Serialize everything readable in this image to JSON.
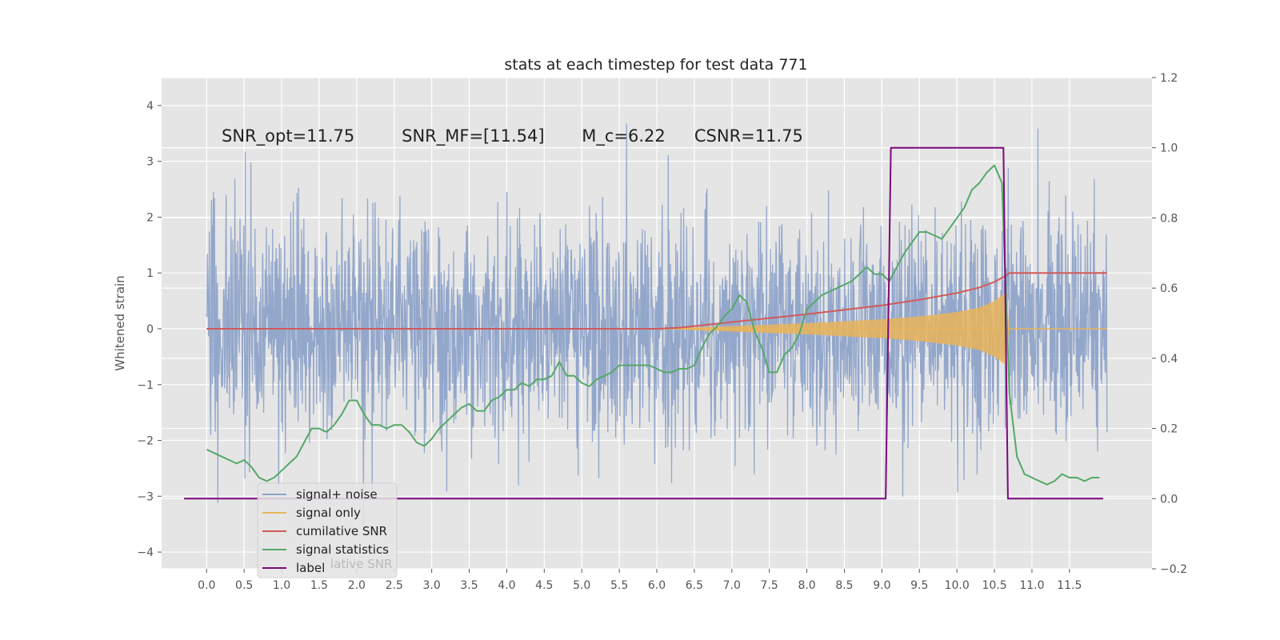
{
  "chart_data": {
    "type": "line",
    "title": "stats at each timestep for test data 771",
    "ylabel": "Whitened strain",
    "xlim": [
      -0.6,
      12.6
    ],
    "ylim": [
      -4.3,
      4.5
    ],
    "y2lim": [
      -0.2,
      1.2
    ],
    "grid": true,
    "legend_position": "lower-left",
    "x_ticks": [
      "0.0",
      "0.5",
      "1.0",
      "1.5",
      "2.0",
      "2.5",
      "3.0",
      "3.5",
      "4.0",
      "4.5",
      "5.0",
      "5.5",
      "6.0",
      "6.5",
      "7.0",
      "7.5",
      "8.0",
      "8.5",
      "9.0",
      "9.5",
      "10.0",
      "10.5",
      "11.0",
      "11.5"
    ],
    "y_ticks": [
      "4",
      "3",
      "2",
      "1",
      "0",
      "−1",
      "−2",
      "−3",
      "−4"
    ],
    "y2_ticks": [
      "1.2",
      "1.0",
      "0.8",
      "0.6",
      "0.4",
      "0.2",
      "0.0",
      "−0.2"
    ],
    "annotations": [
      {
        "text": "SNR_opt=11.75",
        "x": 0.2,
        "y": 3.35
      },
      {
        "text": "SNR_MF=[11.54]",
        "x": 2.6,
        "y": 3.35
      },
      {
        "text": "M_c=6.22",
        "x": 5.0,
        "y": 3.35
      },
      {
        "text": "CSNR=11.75",
        "x": 6.5,
        "y": 3.35
      }
    ],
    "series": [
      {
        "name": "signal+ noise",
        "color": "#8ea3c9",
        "axis": "left",
        "noise_std": 1.0,
        "x_range": [
          0.0,
          12.0
        ]
      },
      {
        "name": "signal only",
        "color": "#e9b45a",
        "axis": "left",
        "envelope_x": [
          6.0,
          7.0,
          8.0,
          9.0,
          9.5,
          10.0,
          10.3,
          10.5,
          10.65,
          10.7,
          12.0
        ],
        "envelope_y": [
          0.0,
          0.05,
          0.1,
          0.17,
          0.22,
          0.3,
          0.38,
          0.5,
          0.65,
          0.0,
          0.0
        ]
      },
      {
        "name": "cumilative SNR",
        "color": "#d15a5a",
        "axis": "left",
        "x": [
          0.0,
          6.0,
          6.3,
          7.0,
          8.0,
          9.0,
          9.5,
          10.0,
          10.3,
          10.5,
          10.65,
          10.7,
          12.0
        ],
        "values": [
          0.0,
          0.0,
          0.02,
          0.12,
          0.26,
          0.42,
          0.52,
          0.64,
          0.74,
          0.84,
          0.95,
          1.0,
          1.0
        ]
      },
      {
        "name": "signal statistics",
        "color": "#55a868",
        "axis": "right",
        "x": [
          0.0,
          0.1,
          0.2,
          0.3,
          0.4,
          0.5,
          0.6,
          0.7,
          0.8,
          0.9,
          1.0,
          1.1,
          1.2,
          1.3,
          1.4,
          1.5,
          1.6,
          1.7,
          1.8,
          1.9,
          2.0,
          2.1,
          2.2,
          2.3,
          2.4,
          2.5,
          2.6,
          2.7,
          2.8,
          2.9,
          3.0,
          3.1,
          3.2,
          3.3,
          3.4,
          3.5,
          3.6,
          3.7,
          3.8,
          3.9,
          4.0,
          4.1,
          4.2,
          4.3,
          4.4,
          4.5,
          4.6,
          4.7,
          4.8,
          4.9,
          5.0,
          5.1,
          5.2,
          5.3,
          5.4,
          5.5,
          5.6,
          5.7,
          5.8,
          5.9,
          6.0,
          6.1,
          6.2,
          6.3,
          6.4,
          6.5,
          6.6,
          6.7,
          6.8,
          6.9,
          7.0,
          7.1,
          7.2,
          7.3,
          7.4,
          7.5,
          7.6,
          7.7,
          7.8,
          7.9,
          8.0,
          8.1,
          8.2,
          8.3,
          8.4,
          8.5,
          8.6,
          8.7,
          8.8,
          8.9,
          9.0,
          9.1,
          9.2,
          9.3,
          9.4,
          9.5,
          9.6,
          9.7,
          9.8,
          9.9,
          10.0,
          10.1,
          10.2,
          10.3,
          10.4,
          10.5,
          10.6,
          10.7,
          10.8,
          10.9,
          11.0,
          11.1,
          11.2,
          11.3,
          11.4,
          11.5,
          11.6,
          11.7,
          11.8,
          11.9
        ],
        "values": [
          0.14,
          0.13,
          0.12,
          0.11,
          0.1,
          0.11,
          0.09,
          0.06,
          0.05,
          0.06,
          0.08,
          0.1,
          0.12,
          0.16,
          0.2,
          0.2,
          0.19,
          0.21,
          0.24,
          0.28,
          0.28,
          0.24,
          0.21,
          0.21,
          0.2,
          0.21,
          0.21,
          0.19,
          0.16,
          0.15,
          0.17,
          0.2,
          0.22,
          0.24,
          0.26,
          0.27,
          0.25,
          0.25,
          0.28,
          0.29,
          0.31,
          0.31,
          0.33,
          0.32,
          0.34,
          0.34,
          0.35,
          0.39,
          0.35,
          0.35,
          0.33,
          0.32,
          0.34,
          0.35,
          0.36,
          0.38,
          0.38,
          0.38,
          0.38,
          0.38,
          0.37,
          0.36,
          0.36,
          0.37,
          0.37,
          0.38,
          0.43,
          0.47,
          0.49,
          0.52,
          0.54,
          0.58,
          0.56,
          0.48,
          0.43,
          0.36,
          0.36,
          0.41,
          0.43,
          0.47,
          0.54,
          0.56,
          0.58,
          0.59,
          0.6,
          0.61,
          0.62,
          0.64,
          0.66,
          0.64,
          0.64,
          0.62,
          0.66,
          0.7,
          0.73,
          0.76,
          0.76,
          0.75,
          0.74,
          0.77,
          0.8,
          0.83,
          0.88,
          0.9,
          0.93,
          0.95,
          0.9,
          0.3,
          0.12,
          0.07,
          0.06,
          0.05,
          0.04,
          0.05,
          0.07,
          0.06,
          0.06,
          0.05,
          0.06,
          0.06
        ]
      },
      {
        "name": "label",
        "color": "#7b0a7b",
        "axis": "right",
        "x": [
          -0.3,
          9.05,
          9.12,
          10.62,
          10.68,
          11.95
        ],
        "values": [
          0.0,
          0.0,
          1.0,
          1.0,
          0.0,
          0.0
        ]
      }
    ],
    "legend": [
      {
        "label": "signal+ noise",
        "color": "#8ea3c9"
      },
      {
        "label": "signal only",
        "color": "#e9b45a"
      },
      {
        "label": "cumilative SNR",
        "color": "#d15a5a"
      },
      {
        "label": "signal statistics",
        "color": "#55a868"
      },
      {
        "label": "label",
        "color": "#7b0a7b"
      }
    ],
    "legend_overlap_text": "lative SNR"
  }
}
